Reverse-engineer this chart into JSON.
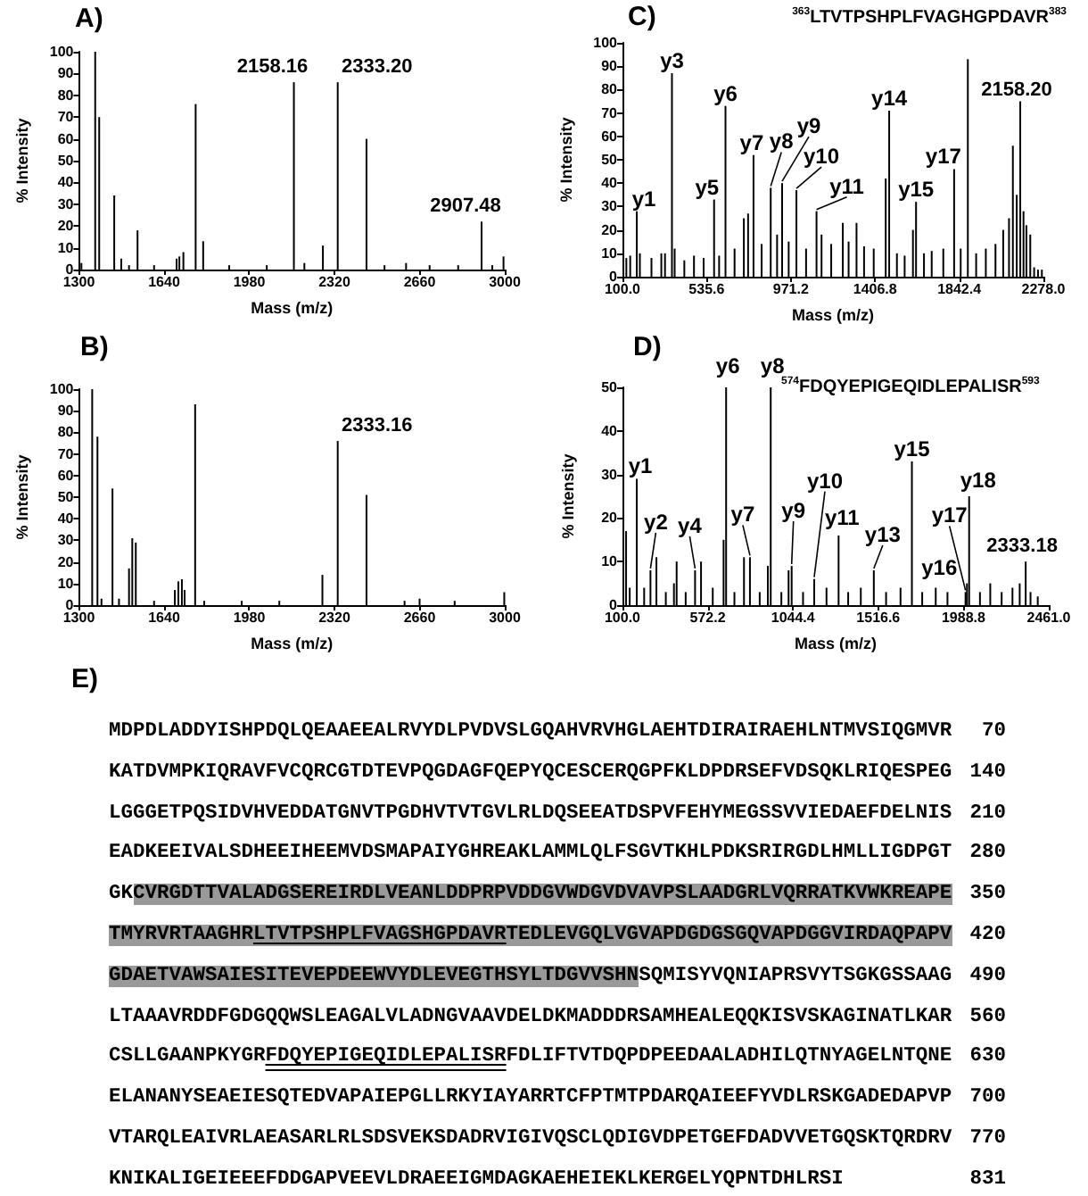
{
  "chart_data": [
    {
      "type": "bar",
      "title": "A)",
      "xlabel": "Mass (m/z)",
      "ylabel": "% Intensity",
      "color": "#000000",
      "x": [
        1310,
        1365,
        1381,
        1441,
        1469,
        1500,
        1534,
        1600,
        1690,
        1701,
        1717,
        1766,
        1796,
        1900,
        2050,
        2158.16,
        2200,
        2274,
        2333.2,
        2448,
        2520,
        2606,
        2700,
        2814,
        2907.48,
        2950,
        2995
      ],
      "values": [
        3,
        100,
        70,
        34,
        5,
        2,
        18,
        2,
        5,
        6,
        8,
        76,
        13,
        2,
        2,
        86,
        3,
        11,
        86,
        60,
        2,
        3,
        2,
        2,
        22,
        2,
        6
      ],
      "xlim": [
        1300,
        3000
      ],
      "xticks": [
        1300,
        1640,
        1980,
        2320,
        2660,
        3000
      ],
      "ylim": [
        0,
        100
      ],
      "yticks": [
        0,
        10,
        20,
        30,
        40,
        50,
        60,
        70,
        80,
        90,
        100
      ],
      "annotations": [
        {
          "text": "2158.16",
          "x": 2158.16,
          "y": 86
        },
        {
          "text": "2333.20",
          "x": 2333.2,
          "y": 86
        },
        {
          "text": "2907.48",
          "x": 2907.48,
          "y": 22
        }
      ]
    },
    {
      "type": "bar",
      "title": "B)",
      "xlabel": "Mass (m/z)",
      "ylabel": "% Intensity",
      "color": "#000000",
      "x": [
        1353,
        1374,
        1390,
        1434,
        1460,
        1500,
        1513,
        1527,
        1600,
        1683,
        1697,
        1711,
        1722,
        1764,
        1800,
        1950,
        2100,
        2272,
        2333.16,
        2448,
        2600,
        2660,
        2800,
        2998
      ],
      "values": [
        100,
        78,
        3,
        54,
        3,
        17,
        31,
        29,
        2,
        7,
        11,
        12,
        7,
        93,
        2,
        2,
        2,
        14,
        76,
        51,
        2,
        3,
        2,
        6
      ],
      "xlim": [
        1300,
        3000
      ],
      "xticks": [
        1300,
        1640,
        1980,
        2320,
        2660,
        3000
      ],
      "ylim": [
        0,
        100
      ],
      "yticks": [
        0,
        10,
        20,
        30,
        40,
        50,
        60,
        70,
        80,
        90,
        100
      ],
      "annotations": [
        {
          "text": "2333.16",
          "x": 2333.16,
          "y": 76
        }
      ]
    },
    {
      "type": "bar",
      "title": "C)",
      "subtitle": "$^{363}$LTVTPSHPLFVAGHGPDAVR$^{383}$",
      "xlabel": "Mass (m/z)",
      "ylabel": "% Intensity",
      "color": "#000000",
      "x": [
        120,
        140,
        174,
        190,
        250,
        301,
        320,
        356,
        370,
        420,
        470,
        520,
        574,
        600,
        633,
        680,
        728,
        750,
        778,
        820,
        867,
        900,
        926,
        960,
        1000,
        1050,
        1104,
        1130,
        1180,
        1240,
        1270,
        1311,
        1350,
        1400,
        1462,
        1480,
        1520,
        1560,
        1603,
        1619,
        1660,
        1700,
        1760,
        1816,
        1850,
        1887,
        1930,
        1980,
        2030,
        2070,
        2100,
        2120,
        2140,
        2158.2,
        2175,
        2190,
        2210,
        2230,
        2250,
        2270
      ],
      "values": [
        8,
        9,
        28,
        10,
        8,
        10,
        10,
        87,
        12,
        7,
        9,
        8,
        33,
        9,
        73,
        12,
        25,
        27,
        52,
        14,
        38,
        18,
        40,
        15,
        37,
        12,
        28,
        18,
        14,
        23,
        15,
        23,
        13,
        12,
        42,
        71,
        10,
        9,
        20,
        32,
        10,
        11,
        12,
        46,
        12,
        93,
        10,
        12,
        14,
        20,
        25,
        56,
        35,
        75,
        28,
        22,
        18,
        4,
        3,
        3
      ],
      "xlim": [
        100,
        2278
      ],
      "xticks": [
        {
          "value": 100,
          "label": "100.0"
        },
        {
          "value": 535.6,
          "label": "535.6"
        },
        {
          "value": 971.2,
          "label": "971.2"
        },
        {
          "value": 1406.8,
          "label": "1406.8"
        },
        {
          "value": 1842.4,
          "label": "1842.4"
        },
        {
          "value": 2278,
          "label": "2278.0"
        }
      ],
      "ylim": [
        0,
        100
      ],
      "yticks": [
        0,
        10,
        20,
        30,
        40,
        50,
        60,
        70,
        80,
        90,
        100
      ],
      "annotations": [
        {
          "text": "y1",
          "x": 174,
          "y": 28
        },
        {
          "text": "y3",
          "x": 356,
          "y": 87
        },
        {
          "text": "y5",
          "x": 574,
          "y": 33
        },
        {
          "text": "y6",
          "x": 633,
          "y": 73
        },
        {
          "text": "y7",
          "x": 778,
          "y": 52
        },
        {
          "text": "y8",
          "x": 867,
          "y": 38
        },
        {
          "text": "y9",
          "x": 926,
          "y": 40
        },
        {
          "text": "y10",
          "x": 1000,
          "y": 37
        },
        {
          "text": "y11",
          "x": 1104,
          "y": 28
        },
        {
          "text": "y14",
          "x": 1480,
          "y": 71
        },
        {
          "text": "y15",
          "x": 1619,
          "y": 32
        },
        {
          "text": "y17",
          "x": 1816,
          "y": 46
        },
        {
          "text": "2158.20",
          "x": 2158.2,
          "y": 75
        }
      ]
    },
    {
      "type": "bar",
      "title": "D)",
      "subtitle": "$^{574}$FDQYEPIGEQIDLEPALISR$^{593}$",
      "xlabel": "Mass (m/z)",
      "ylabel": "% Intensity",
      "color": "#000000",
      "x": [
        120,
        140,
        179,
        220,
        255,
        288,
        340,
        385,
        400,
        450,
        502,
        535,
        600,
        660,
        674,
        720,
        773,
        806,
        860,
        905,
        921,
        980,
        1020,
        1037,
        1100,
        1162,
        1230,
        1297,
        1350,
        1420,
        1492,
        1560,
        1640,
        1703,
        1760,
        1835,
        1900,
        2000,
        2008,
        2020,
        2080,
        2137,
        2200,
        2260,
        2300,
        2333.18,
        2360,
        2400
      ],
      "values": [
        17,
        4,
        29,
        4,
        8,
        11,
        3,
        5,
        10,
        3,
        8,
        10,
        4,
        15,
        50,
        3,
        11,
        11,
        3,
        9,
        50,
        3,
        8,
        9,
        3,
        6,
        4,
        16,
        3,
        4,
        8,
        3,
        4,
        33,
        3,
        4,
        3,
        3,
        5,
        25,
        3,
        5,
        3,
        4,
        5,
        10,
        3,
        2
      ],
      "xlim": [
        100,
        2461
      ],
      "xticks": [
        {
          "value": 100,
          "label": "100.0"
        },
        {
          "value": 572.2,
          "label": "572.2"
        },
        {
          "value": 1044.4,
          "label": "1044.4"
        },
        {
          "value": 1516.6,
          "label": "1516.6"
        },
        {
          "value": 1988.8,
          "label": "1988.8"
        },
        {
          "value": 2461,
          "label": "2461.0"
        }
      ],
      "ylim": [
        0,
        50
      ],
      "yticks": [
        0,
        10,
        20,
        30,
        40,
        50
      ],
      "annotations": [
        {
          "text": "y1",
          "x": 179,
          "y": 29
        },
        {
          "text": "y2",
          "x": 255,
          "y": 8
        },
        {
          "text": "y4",
          "x": 502,
          "y": 8
        },
        {
          "text": "y6",
          "x": 674,
          "y": 50
        },
        {
          "text": "y7",
          "x": 806,
          "y": 11
        },
        {
          "text": "y8",
          "x": 921,
          "y": 50
        },
        {
          "text": "y9",
          "x": 1037,
          "y": 9
        },
        {
          "text": "y10",
          "x": 1162,
          "y": 6
        },
        {
          "text": "y11",
          "x": 1297,
          "y": 16
        },
        {
          "text": "y13",
          "x": 1492,
          "y": 8
        },
        {
          "text": "y15",
          "x": 1703,
          "y": 33
        },
        {
          "text": "y16",
          "x": 1835,
          "y": 4
        },
        {
          "text": "y17",
          "x": 2000,
          "y": 3
        },
        {
          "text": "y18",
          "x": 2020,
          "y": 25
        },
        {
          "text": "2333.18",
          "x": 2333.18,
          "y": 10
        }
      ]
    },
    {
      "type": "other",
      "title": "E)",
      "color": "#999999",
      "annotations": [
        "MDPDLADDYISHPDQLQEAAEEALRVYDLPVDVSLGQAHVRVHGLAEHTDIRAIRAEHLNTMVSIQGMVR",
        "KATDVMPKIQRAVFVCQRCGTDTEVPQGDAGFQEPYQCESCERQGPFKLDPDRSEFVDSQKLRIQESPEG",
        "LGGGETPQSIDVHVEDDATGNVTPGDHVTVTGVLRLDQSEEATDSPVFEHYMEGSSVVIEDAEFDELNIS",
        "EADKEEIVALSDHEEIHEEMVDSMAPAIYGHREAKLAMMLQLFSGVTKHLPDKSRIRGDLHMLLIGDPGT",
        "GK",
        "CVRGDTTVALADGSEREIRDLVEANLDDPRPVDDGVWDGVDVAVPSLAADGRLVQRRATKVWKREAPE",
        "TMYRVRTAAGHR",
        "LTVTPSHPLFVAGSHGPDAVR",
        "TEDLEVGQLVGVAPDGDGSGQVAPDGGVIRDAQPAPV",
        "GDAETVAWSAIESITEVEPDEEWVYDLEVEGTHSYLTDGVVSHN",
        "SQMISYVQNIAPRSVYTSGKGSSAAG",
        "LTAAAVRDDFGDGQQWSLEAGALVLADNGVAAVDELDKMADDDRSAMHEALEQQKISVSKAGINATLKAR",
        "CSLLGAANPKYGR",
        "FDQYEPIGEQIDLEPALISR",
        "FDLIFTVTDQPDPEEDAALADHILQTNYAGELNTQNE",
        "ELANANYSEAEIESQTEDVAPAIEPGLLRKYIAYARRTCFPTMTPDARQAIEEFYVDLRSKGADEDAPVP",
        "VTARQLEAIVRLAEASARLRLSDSVEKSDADRVIGIVQSCLQDIGVDPETGEFDADVVETGQSKTQRDRV",
        "KNIKALIGEIEEEFDDGAPVEEVLDRAEEIGMDAGKAEHEIEKLKERGELYQPNTDHLRSI"
      ],
      "y2_categories": [
        "70",
        "140",
        "210",
        "280",
        "350",
        "420",
        "490",
        "560",
        "630",
        "700",
        "770",
        "831"
      ]
    }
  ]
}
